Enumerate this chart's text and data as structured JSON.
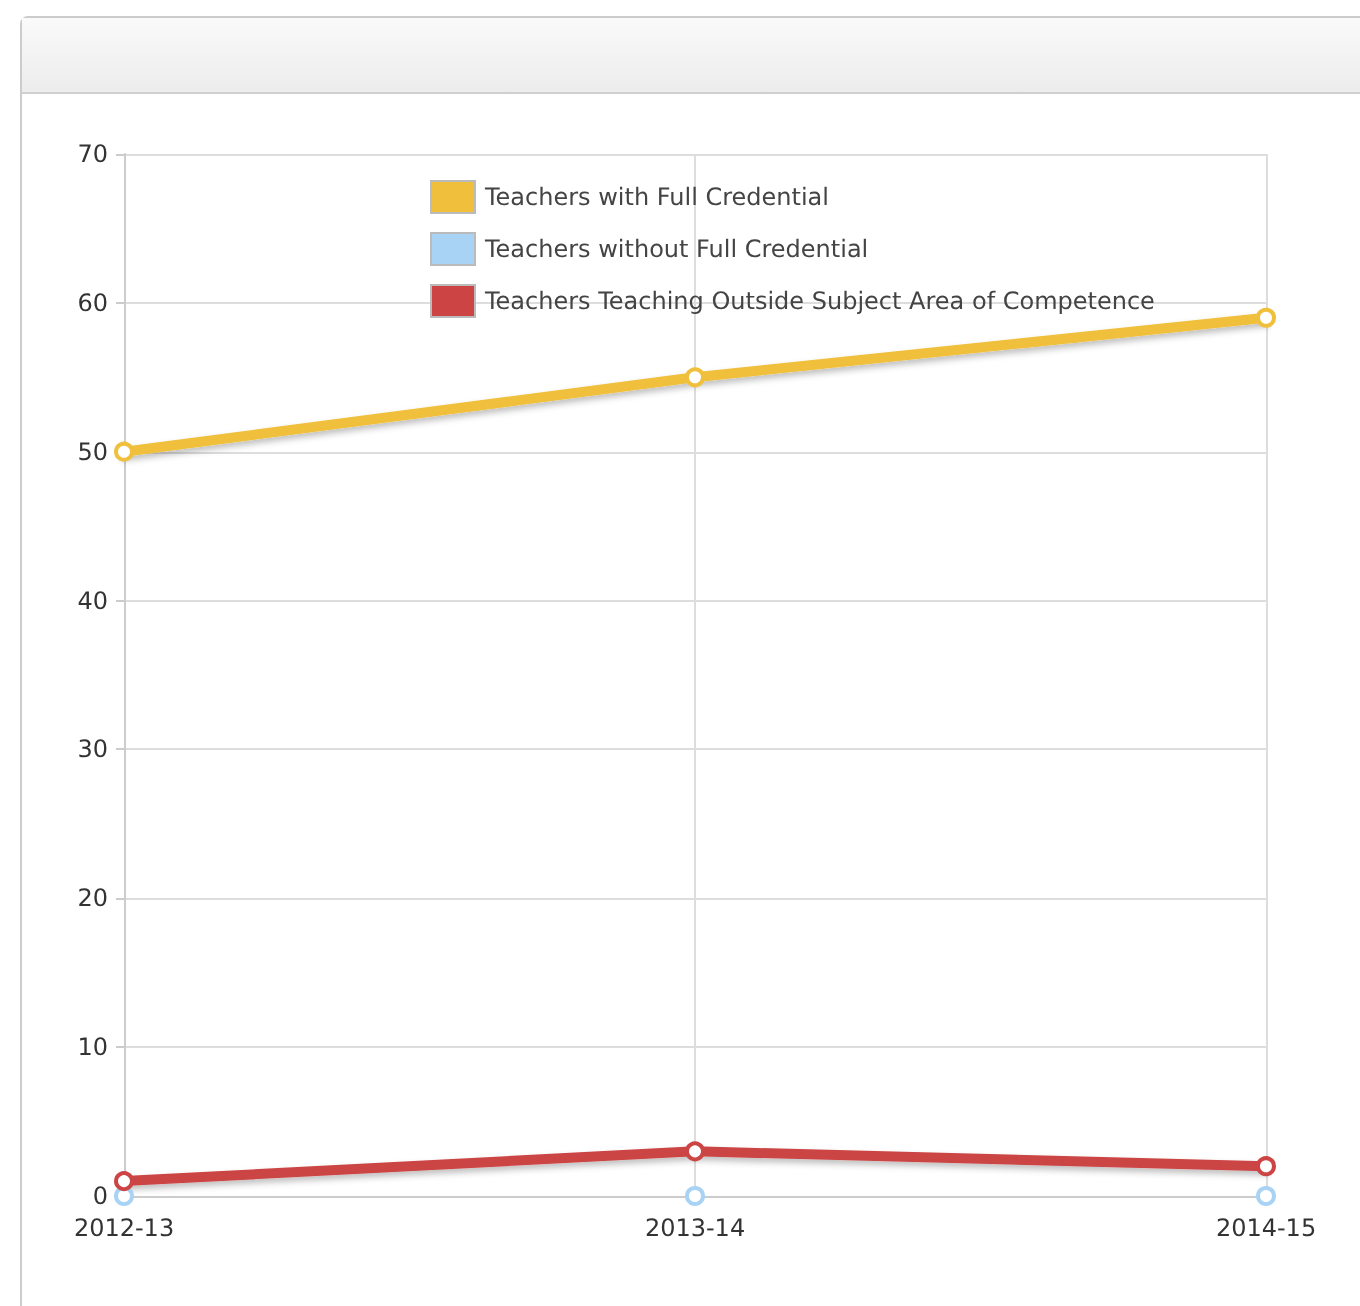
{
  "chart_data": {
    "type": "line",
    "categories": [
      "2012-13",
      "2013-14",
      "2014-15"
    ],
    "series": [
      {
        "name": "Teachers with Full Credential",
        "color": "#f0c03c",
        "values": [
          50,
          55,
          59
        ]
      },
      {
        "name": "Teachers without Full Credential",
        "color": "#a9d3f5",
        "values": [
          0,
          0,
          0
        ]
      },
      {
        "name": "Teachers Teaching Outside Subject Area of Competence",
        "color": "#cc4444",
        "values": [
          1,
          3,
          2
        ]
      }
    ],
    "ylim": [
      0,
      70
    ],
    "yticks": [
      0,
      10,
      20,
      30,
      40,
      50,
      60,
      70
    ],
    "grid": true,
    "legend": "top",
    "marker": "circle",
    "line_style": "solid"
  }
}
